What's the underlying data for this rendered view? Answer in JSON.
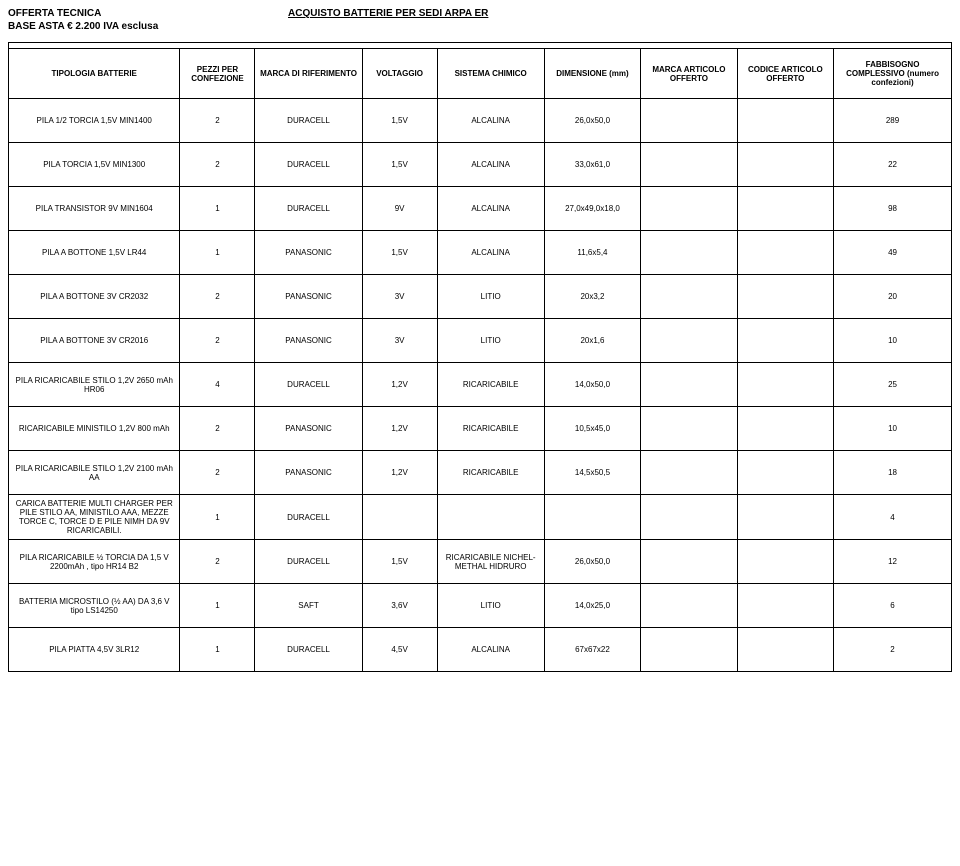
{
  "header": {
    "title_left": "OFFERTA TECNICA",
    "title_center": "ACQUISTO BATTERIE PER SEDI ARPA ER",
    "subtitle": "BASE ASTA €  2.200 IVA esclusa"
  },
  "columns": [
    "TIPOLOGIA BATTERIE",
    "PEZZI PER CONFEZIONE",
    "MARCA DI RIFERIMENTO",
    "VOLTAGGIO",
    "SISTEMA CHIMICO",
    "DIMENSIONE (mm)",
    "MARCA ARTICOLO OFFERTO",
    "CODICE ARTICOLO OFFERTO",
    "FABBISOGNO COMPLESSIVO (numero confezioni)"
  ],
  "rows": [
    {
      "label": "PILA 1/2 TORCIA 1,5V MIN1400",
      "pezzi": "2",
      "marca": "DURACELL",
      "volt": "1,5V",
      "chimico": "ALCALINA",
      "dim": "26,0x50,0",
      "mo": "",
      "co": "",
      "fab": "289"
    },
    {
      "label": "PILA TORCIA 1,5V MIN1300",
      "pezzi": "2",
      "marca": "DURACELL",
      "volt": "1,5V",
      "chimico": "ALCALINA",
      "dim": "33,0x61,0",
      "mo": "",
      "co": "",
      "fab": "22"
    },
    {
      "label": "PILA TRANSISTOR 9V MIN1604",
      "pezzi": "1",
      "marca": "DURACELL",
      "volt": "9V",
      "chimico": "ALCALINA",
      "dim": "27,0x49,0x18,0",
      "mo": "",
      "co": "",
      "fab": "98"
    },
    {
      "label": "PILA A BOTTONE 1,5V LR44",
      "pezzi": "1",
      "marca": "PANASONIC",
      "volt": "1,5V",
      "chimico": "ALCALINA",
      "dim": "11,6x5,4",
      "mo": "",
      "co": "",
      "fab": "49"
    },
    {
      "label": "PILA A BOTTONE 3V CR2032",
      "pezzi": "2",
      "marca": "PANASONIC",
      "volt": "3V",
      "chimico": "LITIO",
      "dim": "20x3,2",
      "mo": "",
      "co": "",
      "fab": "20"
    },
    {
      "label": "PILA A BOTTONE 3V CR2016",
      "pezzi": "2",
      "marca": "PANASONIC",
      "volt": "3V",
      "chimico": "LITIO",
      "dim": "20x1,6",
      "mo": "",
      "co": "",
      "fab": "10"
    },
    {
      "label": "PILA RICARICABILE STILO 1,2V 2650 mAh HR06",
      "pezzi": "4",
      "marca": "DURACELL",
      "volt": "1,2V",
      "chimico": "RICARICABILE",
      "dim": "14,0x50,0",
      "mo": "",
      "co": "",
      "fab": "25"
    },
    {
      "label": "RICARICABILE MINISTILO 1,2V 800 mAh",
      "pezzi": "2",
      "marca": "PANASONIC",
      "volt": "1,2V",
      "chimico": "RICARICABILE",
      "dim": "10,5x45,0",
      "mo": "",
      "co": "",
      "fab": "10"
    },
    {
      "label": "PILA RICARICABILE STILO 1,2V 2100 mAh AA",
      "pezzi": "2",
      "marca": "PANASONIC",
      "volt": "1,2V",
      "chimico": "RICARICABILE",
      "dim": "14,5x50,5",
      "mo": "",
      "co": "",
      "fab": "18"
    },
    {
      "label": "CARICA BATTERIE MULTI CHARGER PER PILE STILO AA, MINISTILO AAA, MEZZE TORCE C, TORCE D E PILE NIMH DA 9V RICARICABILI.",
      "pezzi": "1",
      "marca": "DURACELL",
      "volt": "",
      "chimico": "",
      "dim": "",
      "mo": "",
      "co": "",
      "fab": "4"
    },
    {
      "label": "PILA RICARICABILE ½ TORCIA DA 1,5 V 2200mAh , tipo HR14 B2",
      "pezzi": "2",
      "marca": "DURACELL",
      "volt": "1,5V",
      "chimico": "RICARICABILE NICHEL-METHAL HIDRURO",
      "dim": "26,0x50,0",
      "mo": "",
      "co": "",
      "fab": "12"
    },
    {
      "label": "BATTERIA MICROSTILO (½ AA) DA 3,6 V tipo LS14250",
      "pezzi": "1",
      "marca": "SAFT",
      "volt": "3,6V",
      "chimico": "LITIO",
      "dim": "14,0x25,0",
      "mo": "",
      "co": "",
      "fab": "6"
    },
    {
      "label": "PILA PIATTA 4,5V 3LR12",
      "pezzi": "1",
      "marca": "DURACELL",
      "volt": "4,5V",
      "chimico": "ALCALINA",
      "dim": "67x67x22",
      "mo": "",
      "co": "",
      "fab": "2"
    }
  ]
}
